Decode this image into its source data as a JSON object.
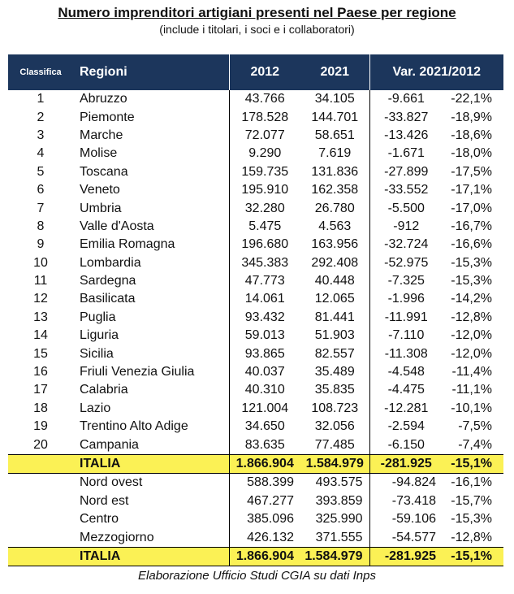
{
  "title": "Numero imprenditori artigiani presenti nel Paese per regione",
  "subtitle": "(include i titolari, i soci e i collaboratori)",
  "headers": {
    "rank": "Classifica",
    "region": "Regioni",
    "y2012": "2012",
    "y2021": "2021",
    "var": "Var. 2021/2012"
  },
  "colors": {
    "header_bg": "#1c365c",
    "total_bg": "#fbf155"
  },
  "rows": [
    [
      "1",
      "Abruzzo",
      "43.766",
      "34.105",
      "-9.661",
      "-22,1%"
    ],
    [
      "2",
      "Piemonte",
      "178.528",
      "144.701",
      "-33.827",
      "-18,9%"
    ],
    [
      "3",
      "Marche",
      "72.077",
      "58.651",
      "-13.426",
      "-18,6%"
    ],
    [
      "4",
      "Molise",
      "9.290",
      "7.619",
      "-1.671",
      "-18,0%"
    ],
    [
      "5",
      "Toscana",
      "159.735",
      "131.836",
      "-27.899",
      "-17,5%"
    ],
    [
      "6",
      "Veneto",
      "195.910",
      "162.358",
      "-33.552",
      "-17,1%"
    ],
    [
      "7",
      "Umbria",
      "32.280",
      "26.780",
      "-5.500",
      "-17,0%"
    ],
    [
      "8",
      "Valle d'Aosta",
      "5.475",
      "4.563",
      "-912",
      "-16,7%"
    ],
    [
      "9",
      "Emilia Romagna",
      "196.680",
      "163.956",
      "-32.724",
      "-16,6%"
    ],
    [
      "10",
      "Lombardia",
      "345.383",
      "292.408",
      "-52.975",
      "-15,3%"
    ],
    [
      "11",
      "Sardegna",
      "47.773",
      "40.448",
      "-7.325",
      "-15,3%"
    ],
    [
      "12",
      "Basilicata",
      "14.061",
      "12.065",
      "-1.996",
      "-14,2%"
    ],
    [
      "13",
      "Puglia",
      "93.432",
      "81.441",
      "-11.991",
      "-12,8%"
    ],
    [
      "14",
      "Liguria",
      "59.013",
      "51.903",
      "-7.110",
      "-12,0%"
    ],
    [
      "15",
      "Sicilia",
      "93.865",
      "82.557",
      "-11.308",
      "-12,0%"
    ],
    [
      "16",
      "Friuli Venezia Giulia",
      "40.037",
      "35.489",
      "-4.548",
      "-11,4%"
    ],
    [
      "17",
      "Calabria",
      "40.310",
      "35.835",
      "-4.475",
      "-11,1%"
    ],
    [
      "18",
      "Lazio",
      "121.004",
      "108.723",
      "-12.281",
      "-10,1%"
    ],
    [
      "19",
      "Trentino Alto Adige",
      "34.650",
      "32.056",
      "-2.594",
      "-7,5%"
    ],
    [
      "20",
      "Campania",
      "83.635",
      "77.485",
      "-6.150",
      "-7,4%"
    ]
  ],
  "total": [
    "",
    "ITALIA",
    "1.866.904",
    "1.584.979",
    "-281.925",
    "-15,1%"
  ],
  "areas": [
    [
      "",
      "Nord ovest",
      "588.399",
      "493.575",
      "-94.824",
      "-16,1%"
    ],
    [
      "",
      "Nord est",
      "467.277",
      "393.859",
      "-73.418",
      "-15,7%"
    ],
    [
      "",
      "Centro",
      "385.096",
      "325.990",
      "-59.106",
      "-15,3%"
    ],
    [
      "",
      "Mezzogiorno",
      "426.132",
      "371.555",
      "-54.577",
      "-12,8%"
    ]
  ],
  "caption": "Elaborazione Ufficio Studi CGIA su dati Inps"
}
